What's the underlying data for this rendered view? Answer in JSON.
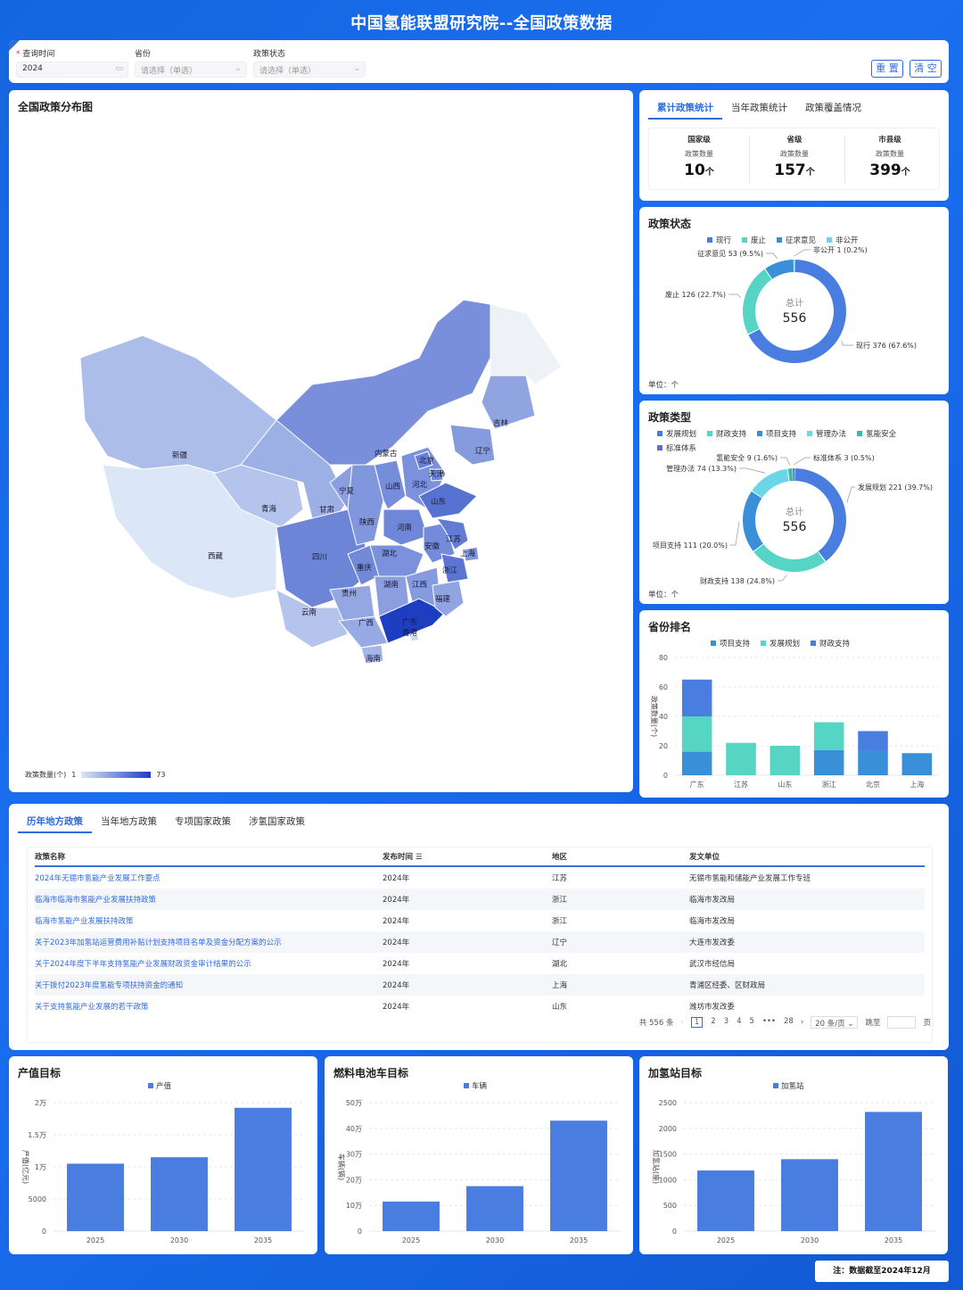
{
  "header": {
    "title": "中国氢能联盟研究院--全国政策数据"
  },
  "filters": {
    "query_time": {
      "label": "查询时间",
      "value": "2024"
    },
    "province": {
      "label": "省份",
      "placeholder": "请选择（单选）"
    },
    "policy_status": {
      "label": "政策状态",
      "placeholder": "请选择（单选）"
    },
    "reset_label": "重 置",
    "clear_label": "清 空"
  },
  "map": {
    "title": "全国政策分布图",
    "legend_label": "政策数量(个)",
    "legend_min": "1",
    "legend_max": "73",
    "provinces": [
      {
        "name": "新疆",
        "value": 8
      },
      {
        "name": "西藏",
        "value": 1
      },
      {
        "name": "青海",
        "value": 6
      },
      {
        "name": "甘肃",
        "value": 12
      },
      {
        "name": "宁夏",
        "value": 18
      },
      {
        "name": "内蒙古",
        "value": 25
      },
      {
        "name": "四川",
        "value": 30
      },
      {
        "name": "云南",
        "value": 6
      },
      {
        "name": "重庆",
        "value": 28
      },
      {
        "name": "陕西",
        "value": 22
      },
      {
        "name": "山西",
        "value": 26
      },
      {
        "name": "河北",
        "value": 24
      },
      {
        "name": "北京",
        "value": 32
      },
      {
        "name": "天津",
        "value": 30
      },
      {
        "name": "山东",
        "value": 40
      },
      {
        "name": "河南",
        "value": 29
      },
      {
        "name": "湖北",
        "value": 24
      },
      {
        "name": "安徽",
        "value": 27
      },
      {
        "name": "江苏",
        "value": 35
      },
      {
        "name": "上海",
        "value": 22
      },
      {
        "name": "浙江",
        "value": 38
      },
      {
        "name": "湖南",
        "value": 18
      },
      {
        "name": "江西",
        "value": 20
      },
      {
        "name": "贵州",
        "value": 15
      },
      {
        "name": "广西",
        "value": 14
      },
      {
        "name": "广东",
        "value": 73
      },
      {
        "name": "香港",
        "value": 2
      },
      {
        "name": "福建",
        "value": 16
      },
      {
        "name": "海南",
        "value": 10
      },
      {
        "name": "辽宁",
        "value": 20
      },
      {
        "name": "吉林",
        "value": 16
      }
    ]
  },
  "stats": {
    "tabs": [
      "累计政策统计",
      "当年政策统计",
      "政策覆盖情况"
    ],
    "cols": [
      {
        "level": "国家级",
        "sub": "政策数量",
        "num": "10",
        "unit": "个"
      },
      {
        "level": "省级",
        "sub": "政策数量",
        "num": "157",
        "unit": "个"
      },
      {
        "level": "市县级",
        "sub": "政策数量",
        "num": "399",
        "unit": "个"
      }
    ]
  },
  "status_chart": {
    "title": "政策状态",
    "unit": "单位：个",
    "total_label": "总计",
    "total": "556",
    "legend": [
      {
        "name": "现行",
        "color": "#4a7de0"
      },
      {
        "name": "废止",
        "color": "#56d4c4"
      },
      {
        "name": "征求意见",
        "color": "#3a90d8"
      },
      {
        "name": "非公开",
        "color": "#6ad6e8"
      }
    ],
    "slices": [
      {
        "name": "现行",
        "value": 376,
        "label": "现行 376 (67.6%)",
        "color": "#4a7de0"
      },
      {
        "name": "废止",
        "value": 126,
        "label": "废止 126 (22.7%)",
        "color": "#56d4c4"
      },
      {
        "name": "征求意见",
        "value": 53,
        "label": "征求意见 53 (9.5%)",
        "color": "#3a90d8"
      },
      {
        "name": "非公开",
        "value": 1,
        "label": "非公开 1 (0.2%)",
        "color": "#6ad6e8"
      }
    ]
  },
  "type_chart": {
    "title": "政策类型",
    "unit": "单位：个",
    "total_label": "总计",
    "total": "556",
    "legend": [
      {
        "name": "发展规划",
        "color": "#4a7de0"
      },
      {
        "name": "财政支持",
        "color": "#56d4c4"
      },
      {
        "name": "项目支持",
        "color": "#3a90d8"
      },
      {
        "name": "管理办法",
        "color": "#6ad6e8"
      },
      {
        "name": "氢能安全",
        "color": "#3fb8a6"
      },
      {
        "name": "标准体系",
        "color": "#5a6fcf"
      }
    ],
    "slices": [
      {
        "name": "发展规划",
        "value": 221,
        "label": "发展规划 221 (39.7%)",
        "color": "#4a7de0"
      },
      {
        "name": "财政支持",
        "value": 138,
        "label": "财政支持 138 (24.8%)",
        "color": "#56d4c4"
      },
      {
        "name": "项目支持",
        "value": 111,
        "label": "项目支持 111 (20.0%)",
        "color": "#3a90d8"
      },
      {
        "name": "管理办法",
        "value": 74,
        "label": "管理办法 74 (13.3%)",
        "color": "#6ad6e8"
      },
      {
        "name": "氢能安全",
        "value": 9,
        "label": "氢能安全 9 (1.6%)",
        "color": "#3fb8a6"
      },
      {
        "name": "标准体系",
        "value": 3,
        "label": "标准体系 3 (0.5%)",
        "color": "#5a6fcf"
      }
    ]
  },
  "chart_data": [
    {
      "type": "bar",
      "title": "省份排名",
      "ylabel": "政策数量(个)",
      "ylim": [
        0,
        80
      ],
      "yticks": [
        0,
        20,
        40,
        60,
        80
      ],
      "stacked": true,
      "categories": [
        "广东",
        "江苏",
        "山东",
        "浙江",
        "北京",
        "上海"
      ],
      "series": [
        {
          "name": "项目支持",
          "color": "#3a90d8",
          "values": [
            16,
            0,
            0,
            17,
            17,
            15
          ]
        },
        {
          "name": "发展规划",
          "color": "#56d4c4",
          "values": [
            24,
            22,
            20,
            19,
            0,
            0
          ]
        },
        {
          "name": "财政支持",
          "color": "#4a7de0",
          "values": [
            25,
            0,
            0,
            0,
            13,
            0
          ]
        }
      ]
    },
    {
      "type": "bar",
      "title": "产值目标",
      "ylabel": "产值(亿元)",
      "ylim": [
        0,
        20000
      ],
      "yticks": [
        {
          "v": 0,
          "t": "0"
        },
        {
          "v": 5000,
          "t": "5000"
        },
        {
          "v": 10000,
          "t": "1万"
        },
        {
          "v": 15000,
          "t": "1.5万"
        },
        {
          "v": 20000,
          "t": "2万"
        }
      ],
      "categories": [
        "2025",
        "2030",
        "2035"
      ],
      "series": [
        {
          "name": "产值",
          "color": "#4a7de0",
          "values": [
            10500,
            11500,
            19200
          ]
        }
      ]
    },
    {
      "type": "bar",
      "title": "燃料电池车目标",
      "ylabel": "车辆(辆)",
      "ylim": [
        0,
        500000
      ],
      "yticks": [
        {
          "v": 0,
          "t": "0"
        },
        {
          "v": 100000,
          "t": "10万"
        },
        {
          "v": 200000,
          "t": "20万"
        },
        {
          "v": 300000,
          "t": "30万"
        },
        {
          "v": 400000,
          "t": "40万"
        },
        {
          "v": 500000,
          "t": "50万"
        }
      ],
      "categories": [
        "2025",
        "2030",
        "2035"
      ],
      "series": [
        {
          "name": "车辆",
          "color": "#4a7de0",
          "values": [
            115000,
            175000,
            430000
          ]
        }
      ]
    },
    {
      "type": "bar",
      "title": "加氢站目标",
      "ylabel": "加氢站(座)",
      "ylim": [
        0,
        2500
      ],
      "yticks": [
        {
          "v": 0,
          "t": "0"
        },
        {
          "v": 500,
          "t": "500"
        },
        {
          "v": 1000,
          "t": "1000"
        },
        {
          "v": 1500,
          "t": "1500"
        },
        {
          "v": 2000,
          "t": "2000"
        },
        {
          "v": 2500,
          "t": "2500"
        }
      ],
      "categories": [
        "2025",
        "2030",
        "2035"
      ],
      "series": [
        {
          "name": "加氢站",
          "color": "#4a7de0",
          "values": [
            1180,
            1400,
            2320
          ]
        }
      ]
    }
  ],
  "table": {
    "tabs": [
      "历年地方政策",
      "当年地方政策",
      "专项国家政策",
      "涉氢国家政策"
    ],
    "headers": [
      "政策名称",
      "发布时间",
      "地区",
      "发文单位"
    ],
    "rows": [
      [
        "2024年无锡市氢能产业发展工作要点",
        "2024年",
        "江苏",
        "无锡市氢能和储能产业发展工作专班"
      ],
      [
        "临海市临海市氢能产业发展扶持政策",
        "2024年",
        "浙江",
        "临海市发改局"
      ],
      [
        "临海市氢能产业发展扶持政策",
        "2024年",
        "浙江",
        "临海市发改局"
      ],
      [
        "关于2023年加氢站运营费用补贴计划支持项目名单及资金分配方案的公示",
        "2024年",
        "辽宁",
        "大连市发改委"
      ],
      [
        "关于2024年度下半年支持氢能产业发展财政资金审计结果的公示",
        "2024年",
        "湖北",
        "武汉市经信局"
      ],
      [
        "关于拨付2023年度氢能专项扶持资金的通知",
        "2024年",
        "上海",
        "青浦区经委、区财政局"
      ],
      [
        "关于支持氢能产业发展的若干政策",
        "2024年",
        "山东",
        "潍坊市发改委"
      ]
    ],
    "pager": {
      "total": "共 556 条",
      "pages": [
        "1",
        "2",
        "3",
        "4",
        "5",
        "•••",
        "28"
      ],
      "page_size": "20 条/页",
      "jump_label": "跳至",
      "page_suffix": "页"
    }
  },
  "note": "注：数据截至2024年12月"
}
